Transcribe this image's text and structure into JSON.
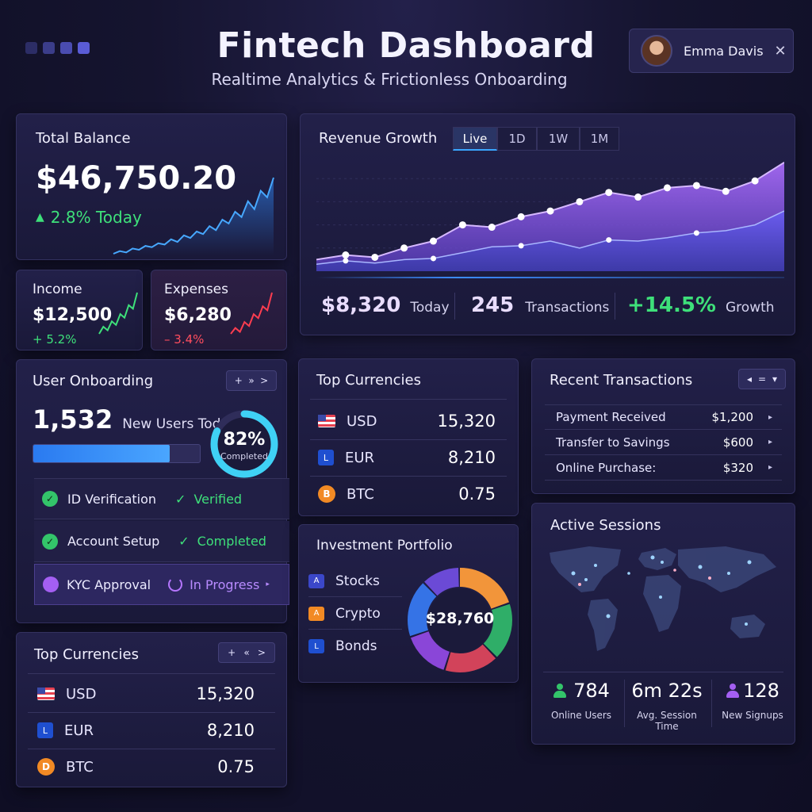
{
  "header": {
    "title": "Fintech Dashboard",
    "subtitle": "Realtime Analytics & Frictionless Onboarding",
    "user_name": "Emma Davis",
    "dot_colors": [
      "#2c2d66",
      "#3b3d8a",
      "#4a4cb0",
      "#5a5cd6"
    ]
  },
  "total_balance": {
    "title": "Total Balance",
    "amount": "$46,750.20",
    "change": "2.8% Today",
    "sparkline": [
      12,
      14,
      13,
      16,
      15,
      18,
      17,
      20,
      19,
      23,
      21,
      26,
      24,
      29,
      27,
      33,
      30,
      38,
      35,
      44,
      40,
      52,
      46,
      60,
      55,
      70
    ]
  },
  "income": {
    "title": "Income",
    "amount": "$12,500",
    "change": "+ 5.2%",
    "sparkline": [
      10,
      14,
      12,
      17,
      15,
      21,
      19,
      26,
      24,
      33
    ]
  },
  "expenses": {
    "title": "Expenses",
    "amount": "$6,280",
    "change": "– 3.4%",
    "sparkline": [
      10,
      13,
      11,
      16,
      14,
      20,
      18,
      24,
      22,
      31
    ]
  },
  "revenue": {
    "title": "Revenue Growth",
    "tabs": [
      "Live",
      "1D",
      "1W",
      "1M"
    ],
    "today_amount": "$8,320",
    "today_label": "Today",
    "transactions_value": "245",
    "transactions_label": "Transactions",
    "growth_value": "+14.5%",
    "growth_label": "Growth",
    "colors": {
      "upper": "#9b5cf0",
      "lower": "#5a52e0"
    }
  },
  "chart_data": {
    "type": "area",
    "title": "Revenue Growth",
    "series": [
      {
        "values": [
          10,
          14,
          12,
          20,
          26,
          40,
          38,
          47,
          52,
          60,
          68,
          64,
          72,
          74,
          69,
          78,
          94
        ]
      },
      {
        "values": [
          6,
          9,
          7,
          10,
          11,
          16,
          21,
          22,
          26,
          20,
          27,
          26,
          29,
          33,
          35,
          40,
          52
        ]
      }
    ],
    "ylim": [
      0,
      100
    ]
  },
  "onboarding": {
    "title": "User Onboarding",
    "controls": [
      "+",
      "»",
      ">"
    ],
    "new_users_count": "1,532",
    "new_users_label": "New Users Today",
    "progress": 0.82,
    "ring_percent": "82%",
    "ring_label": "Completed",
    "steps": [
      {
        "label": "ID Verification",
        "status": "Verified"
      },
      {
        "label": "Account Setup",
        "status": "Completed"
      },
      {
        "label": "KYC Approval",
        "status": "In Progress"
      }
    ]
  },
  "top_currencies_mid": {
    "title": "Top Currencies",
    "rows": [
      {
        "code": "USD",
        "value": "15,320"
      },
      {
        "code": "EUR",
        "badge": "L",
        "value": "8,210"
      },
      {
        "code": "BTC",
        "badge": "B",
        "value": "0.75"
      }
    ]
  },
  "top_currencies_bottom": {
    "title": "Top Currencies",
    "controls": [
      "+",
      "«",
      ">"
    ],
    "rows": [
      {
        "code": "USD",
        "value": "15,320"
      },
      {
        "code": "EUR",
        "badge": "L",
        "value": "8,210"
      },
      {
        "code": "BTC",
        "badge": "D",
        "value": "0.75"
      }
    ]
  },
  "transactions": {
    "title": "Recent Transactions",
    "controls": [
      "◂",
      "=",
      "▾"
    ],
    "rows": [
      {
        "label": "Payment Received",
        "amount": "$1,200"
      },
      {
        "label": "Transfer to Savings",
        "amount": "$600"
      },
      {
        "label": "Online Purchase:",
        "amount": "$320"
      }
    ]
  },
  "portfolio": {
    "title": "Investment Portfolio",
    "total": "$28,760",
    "items": [
      {
        "label": "Stocks",
        "badge": "A",
        "color": "#3b47c9"
      },
      {
        "label": "Crypto",
        "badge": "A",
        "color": "#f28a24"
      },
      {
        "label": "Bonds",
        "badge": "L",
        "color": "#1f4fd0"
      }
    ],
    "segments": [
      {
        "value": 20,
        "color": "#f2953a"
      },
      {
        "value": 18,
        "color": "#2fae68"
      },
      {
        "value": 17,
        "color": "#d2435a"
      },
      {
        "value": 15,
        "color": "#8a46d8"
      },
      {
        "value": 18,
        "color": "#3573e6"
      },
      {
        "value": 12,
        "color": "#6b4ad6"
      }
    ]
  },
  "sessions": {
    "title": "Active Sessions",
    "online_users_value": "784",
    "online_users_label": "Online Users",
    "avg_session_value": "6m 22s",
    "avg_session_label": "Avg. Session Time",
    "new_signups_value": "128",
    "new_signups_label": "New Signups"
  }
}
